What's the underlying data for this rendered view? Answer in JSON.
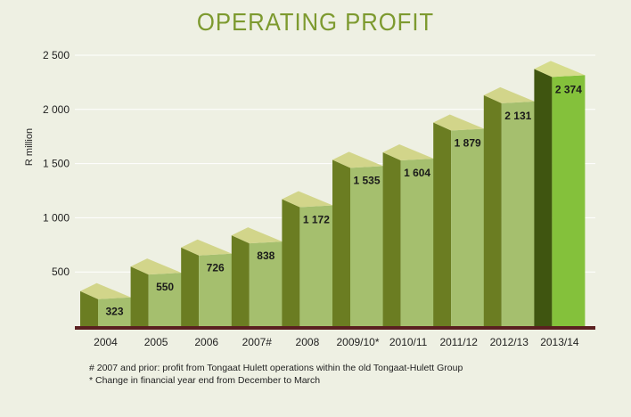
{
  "chart_data": {
    "type": "bar",
    "title": "OPERATING PROFIT",
    "ylabel": "R million",
    "xlabel": "",
    "ylim": [
      0,
      2500
    ],
    "yticks": [
      500,
      1000,
      1500,
      2000,
      2500
    ],
    "ytick_labels": [
      "500",
      "1 000",
      "1 500",
      "2 000",
      "2 500"
    ],
    "grid": true,
    "categories": [
      "2004",
      "2005",
      "2006",
      "2007#",
      "2008",
      "2009/10*",
      "2010/11",
      "2011/12",
      "2012/13",
      "2013/14"
    ],
    "values": [
      323,
      550,
      726,
      838,
      1172,
      1535,
      1604,
      1879,
      2131,
      2374
    ],
    "value_labels": [
      "323",
      "550",
      "726",
      "838",
      "1 172",
      "1 535",
      "1 604",
      "1 879",
      "2 131",
      "2 374"
    ],
    "highlight_index": 9
  },
  "footnotes": [
    "#  2007 and prior: profit from Tongaat Hulett operations within the old Tongaat-Hulett Group",
    "*  Change in financial year end from December to March"
  ],
  "colors": {
    "title": "#7d9a2f",
    "front": "#a5bf6e",
    "side": "#6b7d22",
    "top": "#d2d58a",
    "highlight_front": "#84c13b",
    "highlight_side": "#3f5510",
    "highlight_top": "#d6dc8c",
    "baseline": "#5a2020",
    "grid": "#ffffff"
  }
}
